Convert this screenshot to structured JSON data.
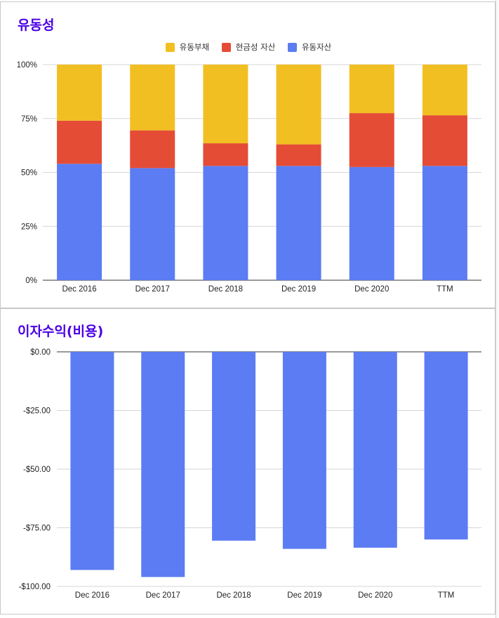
{
  "colors": {
    "current_liabilities": "#f2bf22",
    "cash_assets": "#e44c36",
    "current_assets": "#5b7cf2",
    "title": "#4a00e6"
  },
  "chart_data": [
    {
      "type": "bar",
      "stacked": true,
      "title": "유동성",
      "categories": [
        "Dec 2016",
        "Dec 2017",
        "Dec 2018",
        "Dec 2019",
        "Dec 2020",
        "TTM"
      ],
      "series": [
        {
          "name": "유동자산",
          "values": [
            54,
            52,
            53,
            53,
            52.5,
            53
          ]
        },
        {
          "name": "현금성 자산",
          "values": [
            20,
            17.5,
            10.5,
            10,
            25,
            23.5
          ]
        },
        {
          "name": "유동부채",
          "values": [
            26,
            30.5,
            36.5,
            37,
            22.5,
            23.5
          ]
        }
      ],
      "legend": [
        "유동부채",
        "현금성 자산",
        "유동자산"
      ],
      "legend_position": "top",
      "yticks": [
        "100%",
        "75%",
        "50%",
        "25%",
        "0%"
      ],
      "ylim": [
        0,
        100
      ],
      "grid": true
    },
    {
      "type": "bar",
      "title": "이자수익(비용)",
      "categories": [
        "Dec 2016",
        "Dec 2017",
        "Dec 2018",
        "Dec 2019",
        "Dec 2020",
        "TTM"
      ],
      "values": [
        -93,
        -96,
        -80.5,
        -84,
        -83.5,
        -80
      ],
      "yticks": [
        "$0.00",
        "-$25.00",
        "-$50.00",
        "-$75.00",
        "-$100.00"
      ],
      "ylim": [
        -100,
        0
      ],
      "grid": true
    }
  ]
}
